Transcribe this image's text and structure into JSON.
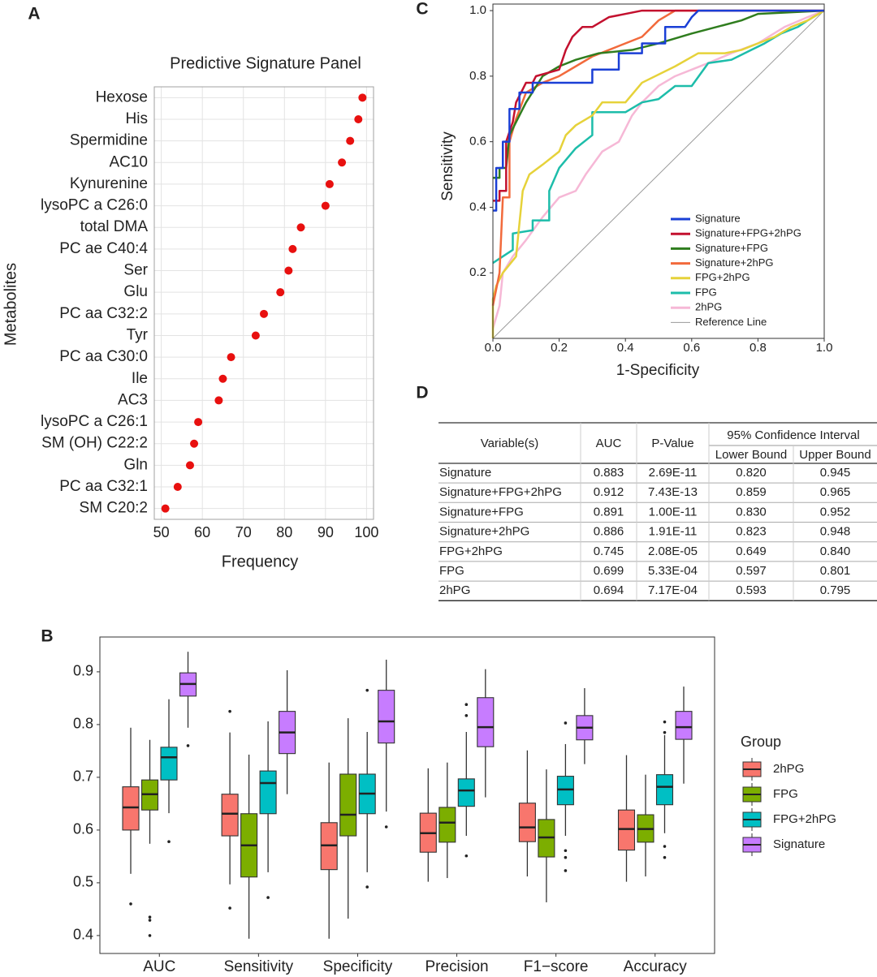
{
  "chart_data": [
    {
      "type": "dot",
      "panel": "A",
      "title": "Predictive Signature Panel",
      "xlabel": "Frequency",
      "ylabel": "Metabolites",
      "categories": [
        "Hexose",
        "His",
        "Spermidine",
        "AC10",
        "Kynurenine",
        "lysoPC a C26:0",
        "total DMA",
        "PC ae C40:4",
        "Ser",
        "Glu",
        "PC aa C32:2",
        "Tyr",
        "PC aa C30:0",
        "Ile",
        "AC3",
        "lysoPC a C26:1",
        "SM (OH) C22:2",
        "Gln",
        "PC aa C32:1",
        "SM C20:2"
      ],
      "values": [
        99,
        98,
        96,
        94,
        91,
        90,
        84,
        82,
        81,
        79,
        75,
        73,
        67,
        65,
        64,
        59,
        58,
        57,
        54,
        51
      ],
      "color": "#e8100f",
      "xlim": [
        48.3,
        101.7
      ],
      "xticks": [
        50,
        60,
        70,
        80,
        90,
        100
      ],
      "grid": true
    },
    {
      "type": "line",
      "panel": "C",
      "xlabel": "1-Specificity",
      "ylabel": "Sensitivity",
      "xlim": [
        0,
        1
      ],
      "ylim": [
        0,
        1.02
      ],
      "xticks": [
        {
          "value": 0,
          "label": "0.0"
        },
        0.2,
        0.4,
        0.6,
        0.8,
        {
          "value": 1,
          "label": "1.0"
        }
      ],
      "yticks": [
        0.2,
        0.4,
        0.6,
        0.8,
        {
          "value": 1,
          "label": "1.0"
        }
      ],
      "grid": false,
      "legend": "bottom-right",
      "series": [
        {
          "name": "Signature",
          "color": "#1a3fd6",
          "x": [
            0,
            0.01,
            0.01,
            0.03,
            0.03,
            0.05,
            0.05,
            0.08,
            0.08,
            0.12,
            0.12,
            0.3,
            0.3,
            0.38,
            0.38,
            0.45,
            0.45,
            0.52,
            0.52,
            0.58,
            0.6,
            0.62,
            1
          ],
          "y": [
            0.39,
            0.39,
            0.52,
            0.52,
            0.6,
            0.6,
            0.7,
            0.7,
            0.75,
            0.75,
            0.78,
            0.78,
            0.82,
            0.82,
            0.87,
            0.87,
            0.9,
            0.9,
            0.95,
            0.95,
            0.98,
            1,
            1
          ]
        },
        {
          "name": "Signature+FPG+2hPG",
          "color": "#c3102e",
          "x": [
            0,
            0.02,
            0.02,
            0.04,
            0.04,
            0.06,
            0.07,
            0.09,
            0.1,
            0.12,
            0.13,
            0.2,
            0.22,
            0.24,
            0.27,
            0.3,
            0.35,
            0.45,
            1
          ],
          "y": [
            0.42,
            0.42,
            0.45,
            0.45,
            0.6,
            0.66,
            0.72,
            0.76,
            0.78,
            0.78,
            0.8,
            0.82,
            0.88,
            0.92,
            0.95,
            0.95,
            0.98,
            1,
            1
          ]
        },
        {
          "name": "Signature+FPG",
          "color": "#2f7d1e",
          "x": [
            0,
            0.02,
            0.02,
            0.04,
            0.05,
            0.08,
            0.1,
            0.15,
            0.2,
            0.25,
            0.32,
            0.42,
            0.5,
            0.6,
            0.75,
            0.8,
            1
          ],
          "y": [
            0.49,
            0.49,
            0.52,
            0.52,
            0.62,
            0.68,
            0.72,
            0.8,
            0.83,
            0.85,
            0.87,
            0.88,
            0.9,
            0.93,
            0.97,
            0.99,
            1
          ]
        },
        {
          "name": "Signature+2hPG",
          "color": "#f26a3c",
          "x": [
            0,
            0.02,
            0.03,
            0.05,
            0.05,
            0.07,
            0.1,
            0.15,
            0.2,
            0.25,
            0.3,
            0.35,
            0.45,
            0.5,
            0.55,
            1
          ],
          "y": [
            0.1,
            0.2,
            0.43,
            0.43,
            0.6,
            0.67,
            0.75,
            0.78,
            0.8,
            0.83,
            0.86,
            0.88,
            0.92,
            0.97,
            1,
            1
          ]
        },
        {
          "name": "FPG+2hPG",
          "color": "#e6d23a",
          "x": [
            0,
            0,
            0.01,
            0.03,
            0.07,
            0.09,
            0.11,
            0.15,
            0.2,
            0.22,
            0.25,
            0.3,
            0.33,
            0.4,
            0.45,
            0.55,
            0.62,
            0.7,
            0.75,
            0.85,
            0.9,
            0.95,
            1
          ],
          "y": [
            0,
            0.12,
            0.16,
            0.2,
            0.25,
            0.45,
            0.5,
            0.53,
            0.57,
            0.62,
            0.65,
            0.68,
            0.72,
            0.72,
            0.78,
            0.83,
            0.87,
            0.87,
            0.88,
            0.92,
            0.95,
            0.97,
            1
          ]
        },
        {
          "name": "FPG",
          "color": "#1dbdaa",
          "x": [
            0,
            0.06,
            0.06,
            0.12,
            0.12,
            0.17,
            0.17,
            0.2,
            0.25,
            0.3,
            0.3,
            0.4,
            0.45,
            0.5,
            0.55,
            0.6,
            0.65,
            0.72,
            0.78,
            0.82,
            0.87,
            0.92,
            0.95,
            1
          ],
          "y": [
            0.23,
            0.27,
            0.32,
            0.33,
            0.36,
            0.36,
            0.45,
            0.52,
            0.58,
            0.62,
            0.69,
            0.69,
            0.72,
            0.73,
            0.77,
            0.77,
            0.84,
            0.85,
            0.88,
            0.9,
            0.93,
            0.95,
            0.97,
            1
          ]
        },
        {
          "name": "2hPG",
          "color": "#f6b8d6",
          "x": [
            0,
            0.02,
            0.03,
            0.06,
            0.1,
            0.15,
            0.2,
            0.25,
            0.28,
            0.33,
            0.38,
            0.42,
            0.45,
            0.5,
            0.55,
            0.6,
            0.65,
            0.72,
            0.8,
            0.88,
            0.95,
            1
          ],
          "y": [
            0.03,
            0.1,
            0.2,
            0.25,
            0.3,
            0.37,
            0.43,
            0.45,
            0.5,
            0.57,
            0.6,
            0.68,
            0.72,
            0.77,
            0.8,
            0.82,
            0.84,
            0.87,
            0.9,
            0.95,
            0.98,
            1
          ]
        },
        {
          "name": "Reference Line",
          "color": "#999999",
          "x": [
            0,
            1
          ],
          "y": [
            0,
            1
          ]
        }
      ]
    },
    {
      "type": "box",
      "panel": "B",
      "legend_title": "Group",
      "legend": "right",
      "grid": false,
      "categories": [
        "AUC",
        "Sensitivity",
        "Specificity",
        "Precision",
        "F1−score",
        "Accuracy"
      ],
      "ylim": [
        0.366,
        0.966
      ],
      "yticks": [
        0.4,
        0.5,
        0.6,
        0.7,
        0.8,
        0.9
      ],
      "series": [
        {
          "name": "2hPG",
          "color": "#f8766d",
          "boxes": [
            {
              "lower": 0.517,
              "q1": 0.6,
              "median": 0.643,
              "q3": 0.682,
              "upper": 0.794,
              "outliers": [
                0.46
              ]
            },
            {
              "lower": 0.497,
              "q1": 0.589,
              "median": 0.631,
              "q3": 0.668,
              "upper": 0.785,
              "outliers": [
                0.825,
                0.452
              ]
            },
            {
              "lower": 0.394,
              "q1": 0.525,
              "median": 0.571,
              "q3": 0.614,
              "upper": 0.728,
              "outliers": []
            },
            {
              "lower": 0.502,
              "q1": 0.558,
              "median": 0.594,
              "q3": 0.632,
              "upper": 0.717,
              "outliers": []
            },
            {
              "lower": 0.512,
              "q1": 0.578,
              "median": 0.605,
              "q3": 0.651,
              "upper": 0.751,
              "outliers": []
            },
            {
              "lower": 0.502,
              "q1": 0.562,
              "median": 0.602,
              "q3": 0.638,
              "upper": 0.742,
              "outliers": []
            }
          ]
        },
        {
          "name": "FPG",
          "color": "#7cae00",
          "boxes": [
            {
              "lower": 0.574,
              "q1": 0.638,
              "median": 0.668,
              "q3": 0.695,
              "upper": 0.771,
              "outliers": [
                0.435,
                0.429,
                0.4
              ]
            },
            {
              "lower": 0.394,
              "q1": 0.511,
              "median": 0.571,
              "q3": 0.631,
              "upper": 0.743,
              "outliers": []
            },
            {
              "lower": 0.432,
              "q1": 0.589,
              "median": 0.629,
              "q3": 0.706,
              "upper": 0.812,
              "outliers": []
            },
            {
              "lower": 0.509,
              "q1": 0.577,
              "median": 0.614,
              "q3": 0.643,
              "upper": 0.728,
              "outliers": []
            },
            {
              "lower": 0.463,
              "q1": 0.549,
              "median": 0.586,
              "q3": 0.62,
              "upper": 0.715,
              "outliers": []
            },
            {
              "lower": 0.512,
              "q1": 0.577,
              "median": 0.602,
              "q3": 0.629,
              "upper": 0.705,
              "outliers": []
            }
          ]
        },
        {
          "name": "FPG+2hPG",
          "color": "#00bfc4",
          "boxes": [
            {
              "lower": 0.632,
              "q1": 0.695,
              "median": 0.738,
              "q3": 0.757,
              "upper": 0.848,
              "outliers": [
                0.578
              ]
            },
            {
              "lower": 0.52,
              "q1": 0.631,
              "median": 0.689,
              "q3": 0.712,
              "upper": 0.806,
              "outliers": [
                0.472
              ]
            },
            {
              "lower": 0.52,
              "q1": 0.631,
              "median": 0.669,
              "q3": 0.706,
              "upper": 0.786,
              "outliers": [
                0.865,
                0.492
              ]
            },
            {
              "lower": 0.589,
              "q1": 0.645,
              "median": 0.675,
              "q3": 0.697,
              "upper": 0.786,
              "outliers": [
                0.838,
                0.817,
                0.551
              ]
            },
            {
              "lower": 0.589,
              "q1": 0.648,
              "median": 0.677,
              "q3": 0.702,
              "upper": 0.763,
              "outliers": [
                0.803,
                0.561,
                0.548,
                0.523
              ]
            },
            {
              "lower": 0.594,
              "q1": 0.648,
              "median": 0.682,
              "q3": 0.705,
              "upper": 0.78,
              "outliers": [
                0.805,
                0.785,
                0.569,
                0.548
              ]
            }
          ]
        },
        {
          "name": "Signature",
          "color": "#c77cff",
          "boxes": [
            {
              "lower": 0.794,
              "q1": 0.854,
              "median": 0.877,
              "q3": 0.898,
              "upper": 0.938,
              "outliers": [
                0.76
              ]
            },
            {
              "lower": 0.668,
              "q1": 0.745,
              "median": 0.785,
              "q3": 0.825,
              "upper": 0.903,
              "outliers": []
            },
            {
              "lower": 0.635,
              "q1": 0.765,
              "median": 0.806,
              "q3": 0.865,
              "upper": 0.923,
              "outliers": [
                0.606
              ]
            },
            {
              "lower": 0.662,
              "q1": 0.758,
              "median": 0.795,
              "q3": 0.851,
              "upper": 0.905,
              "outliers": []
            },
            {
              "lower": 0.725,
              "q1": 0.771,
              "median": 0.794,
              "q3": 0.817,
              "upper": 0.869,
              "outliers": []
            },
            {
              "lower": 0.688,
              "q1": 0.772,
              "median": 0.795,
              "q3": 0.825,
              "upper": 0.872,
              "outliers": []
            }
          ]
        }
      ]
    }
  ],
  "table": {
    "panel": "D",
    "columns": [
      "Variable(s)",
      "AUC",
      "P-Value"
    ],
    "group_header": "95% Confidence Interval",
    "sub_columns": [
      "Lower Bound",
      "Upper Bound"
    ],
    "rows": [
      [
        "Signature",
        "0.883",
        "2.69E-11",
        "0.820",
        "0.945"
      ],
      [
        "Signature+FPG+2hPG",
        "0.912",
        "7.43E-13",
        "0.859",
        "0.965"
      ],
      [
        "Signature+FPG",
        "0.891",
        "1.00E-11",
        "0.830",
        "0.952"
      ],
      [
        "Signature+2hPG",
        "0.886",
        "1.91E-11",
        "0.823",
        "0.948"
      ],
      [
        "FPG+2hPG",
        "0.745",
        "2.08E-05",
        "0.649",
        "0.840"
      ],
      [
        "FPG",
        "0.699",
        "5.33E-04",
        "0.597",
        "0.801"
      ],
      [
        "2hPG",
        "0.694",
        "7.17E-04",
        "0.593",
        "0.795"
      ]
    ]
  }
}
